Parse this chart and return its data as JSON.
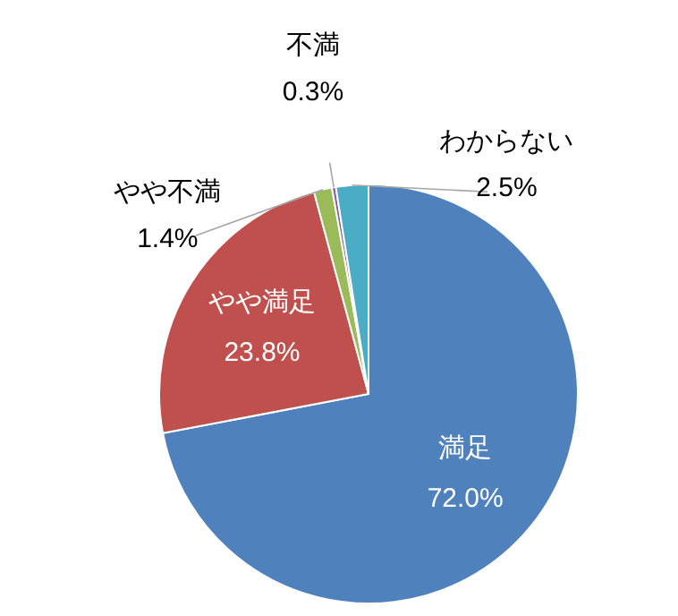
{
  "chart_data": {
    "type": "pie",
    "categories": [
      "満足",
      "やや満足",
      "やや不満",
      "不満",
      "わからない"
    ],
    "values": [
      72.0,
      23.8,
      1.4,
      0.3,
      2.5
    ],
    "colors": [
      "#4f81bd",
      "#c0504d",
      "#9bbb59",
      "#8064a2",
      "#4bacc6"
    ],
    "value_labels": [
      "72.0%",
      "23.8%",
      "1.4%",
      "0.3%",
      "2.5%"
    ]
  }
}
